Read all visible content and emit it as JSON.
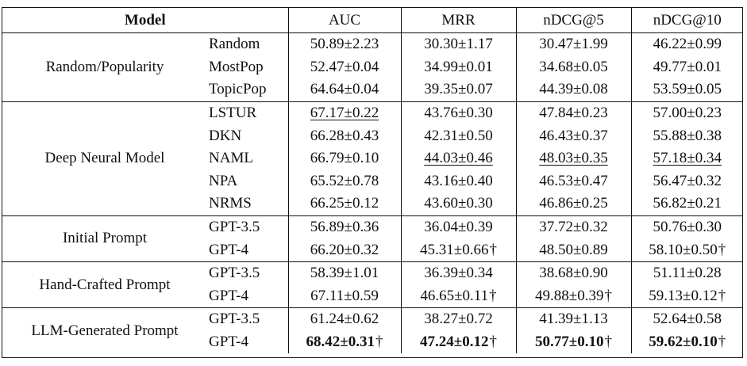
{
  "table": {
    "headers": [
      "Model",
      "AUC",
      "MRR",
      "nDCG@5",
      "nDCG@10"
    ],
    "groups": [
      {
        "label": "Random/Popularity",
        "rows": [
          {
            "model": "Random",
            "cells": [
              {
                "text": "50.89±2.23"
              },
              {
                "text": "30.30±1.17"
              },
              {
                "text": "30.47±1.99"
              },
              {
                "text": "46.22±0.99"
              }
            ]
          },
          {
            "model": "MostPop",
            "cells": [
              {
                "text": "52.47±0.04"
              },
              {
                "text": "34.99±0.01"
              },
              {
                "text": "34.68±0.05"
              },
              {
                "text": "49.77±0.01"
              }
            ]
          },
          {
            "model": "TopicPop",
            "cells": [
              {
                "text": "64.64±0.04"
              },
              {
                "text": "39.35±0.07"
              },
              {
                "text": "44.39±0.08"
              },
              {
                "text": "53.59±0.05"
              }
            ]
          }
        ]
      },
      {
        "label": "Deep Neural Model",
        "rows": [
          {
            "model": "LSTUR",
            "cells": [
              {
                "text": "67.17±0.22",
                "underline": true
              },
              {
                "text": "43.76±0.30"
              },
              {
                "text": "47.84±0.23"
              },
              {
                "text": "57.00±0.23"
              }
            ]
          },
          {
            "model": "DKN",
            "cells": [
              {
                "text": "66.28±0.43"
              },
              {
                "text": "42.31±0.50"
              },
              {
                "text": "46.43±0.37"
              },
              {
                "text": "55.88±0.38"
              }
            ]
          },
          {
            "model": "NAML",
            "cells": [
              {
                "text": "66.79±0.10"
              },
              {
                "text": "44.03±0.46",
                "underline": true
              },
              {
                "text": "48.03±0.35",
                "underline": true
              },
              {
                "text": "57.18±0.34",
                "underline": true
              }
            ]
          },
          {
            "model": "NPA",
            "cells": [
              {
                "text": "65.52±0.78"
              },
              {
                "text": "43.16±0.40"
              },
              {
                "text": "46.53±0.47"
              },
              {
                "text": "56.47±0.32"
              }
            ]
          },
          {
            "model": "NRMS",
            "cells": [
              {
                "text": "66.25±0.12"
              },
              {
                "text": "43.60±0.30"
              },
              {
                "text": "46.86±0.25"
              },
              {
                "text": "56.82±0.21"
              }
            ]
          }
        ]
      },
      {
        "label": "Initial Prompt",
        "rows": [
          {
            "model": "GPT-3.5",
            "cells": [
              {
                "text": "56.89±0.36"
              },
              {
                "text": "36.04±0.39"
              },
              {
                "text": "37.72±0.32"
              },
              {
                "text": "50.76±0.30"
              }
            ]
          },
          {
            "model": "GPT-4",
            "cells": [
              {
                "text": "66.20±0.32"
              },
              {
                "text": "45.31±0.66",
                "dagger": "†"
              },
              {
                "text": "48.50±0.89"
              },
              {
                "text": "58.10±0.50",
                "dagger": "†"
              }
            ]
          }
        ]
      },
      {
        "label": "Hand-Crafted Prompt",
        "rows": [
          {
            "model": "GPT-3.5",
            "cells": [
              {
                "text": "58.39±1.01"
              },
              {
                "text": "36.39±0.34"
              },
              {
                "text": "38.68±0.90"
              },
              {
                "text": "51.11±0.28"
              }
            ]
          },
          {
            "model": "GPT-4",
            "cells": [
              {
                "text": "67.11±0.59"
              },
              {
                "text": "46.65±0.11",
                "dagger": "†"
              },
              {
                "text": "49.88±0.39",
                "dagger": "†"
              },
              {
                "text": "59.13±0.12",
                "dagger": "†"
              }
            ]
          }
        ]
      },
      {
        "label": "LLM-Generated Prompt",
        "rows": [
          {
            "model": "GPT-3.5",
            "cells": [
              {
                "text": "61.24±0.62"
              },
              {
                "text": "38.27±0.72"
              },
              {
                "text": "41.39±1.13"
              },
              {
                "text": "52.64±0.58"
              }
            ]
          },
          {
            "model": "GPT-4",
            "cells": [
              {
                "text": "68.42±0.31",
                "bold": true,
                "dagger": "†"
              },
              {
                "text": "47.24±0.12",
                "bold": true,
                "dagger": "†"
              },
              {
                "text": "50.77±0.10",
                "bold": true,
                "dagger": "†"
              },
              {
                "text": "59.62±0.10",
                "bold": true,
                "dagger": "†"
              }
            ]
          }
        ]
      }
    ]
  }
}
